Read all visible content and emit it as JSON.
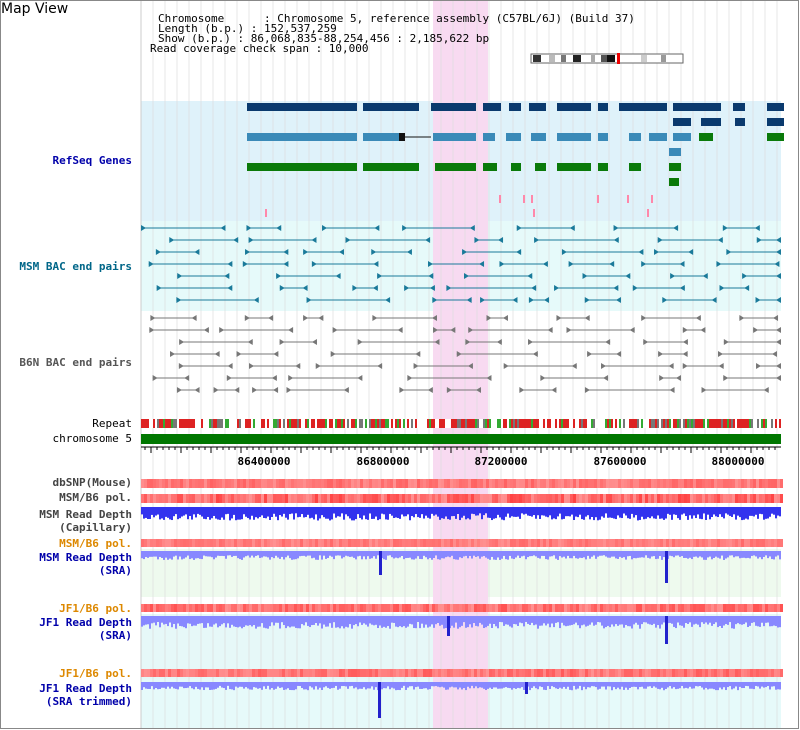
{
  "title": "Map View",
  "header": {
    "chromosome": "Chromosome      : Chromosome 5, reference assembly (C57BL/6J) (Build 37)",
    "length": "Length (b.p.) : 152,537,259",
    "show": "Show (b.p.) : 86,068,835-88,254,456 : 2,185,622 bp",
    "coverage": "Read coverage check span : 10,000"
  },
  "tracks": {
    "refseq": "RefSeq Genes",
    "msm_bac": "MSM BAC end pairs",
    "b6n_bac": "B6N BAC end pairs",
    "repeat": "Repeat",
    "chromosome": "chromosome 5",
    "dbsnp": "dbSNP(Mouse)",
    "msm_pol_cap": "MSM/B6 pol.",
    "msm_depth_cap_1": "MSM Read Depth",
    "msm_depth_cap_2": "(Capillary)",
    "msm_pol_sra": "MSM/B6 pol.",
    "msm_depth_sra_1": "MSM Read Depth",
    "msm_depth_sra_2": "(SRA)",
    "jf1_pol_sra": "JF1/B6 pol.",
    "jf1_depth_sra_1": "JF1 Read Depth",
    "jf1_depth_sra_2": "(SRA)",
    "jf1_pol_trim": "JF1/B6 pol.",
    "jf1_depth_trim_1": "JF1 Read Depth",
    "jf1_depth_trim_2": "(SRA trimmed)"
  },
  "axis": {
    "ticks": [
      "86400000",
      "86800000",
      "87200000",
      "87600000",
      "88000000"
    ]
  },
  "colors": {
    "refseq_bg": "#dff2fa",
    "msm_bg": "#e6fafa",
    "highlight": "#f8d8f0",
    "chromosome": "#007700",
    "gene_dark": "#0a3a6e",
    "gene_mid": "#3a8ab8",
    "gene_green": "#0a7a0a",
    "bac_teal": "#1a7a9a",
    "bac_gray": "#777777",
    "depth_blue": "#3333ee",
    "depth_light": "#8888ff"
  }
}
